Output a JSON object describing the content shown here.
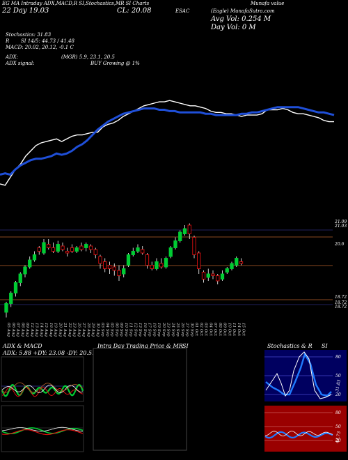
{
  "header": {
    "line1": "EG MA Intraday ADX,MACD,R SI,Stochastics,MR SI Charts",
    "line1b": "ESAC",
    "line1c": "Munafa value",
    "line2_left": "22 Day  19.03",
    "line2_mid": "CL: 20.08",
    "avg_vol": "Avg Vol: 0.254 M",
    "day_vol": "Day Vol: 0  M",
    "watermark": "(Eagle)  MunafaSutra.com",
    "stoch": "Stochastics: 31.83",
    "rsi": "SI 14/5: 44.73 / 41.48",
    "rsi_prefix": "R",
    "macd": "MACD: 20.02, 20.12, -0.1 C",
    "adx": "ADX:",
    "adx_values": "(MGR) 5.9, 23.1, 20.5",
    "adx_signal": "ADX  signal:",
    "signal": "BUY Growing @ 1%"
  },
  "colors": {
    "bg": "#000000",
    "ma_line": "#1f4fd8",
    "price_line": "#ffffff",
    "green": "#00cc33",
    "red": "#e01010",
    "level_line": "#b8602a",
    "grid_blue": "#2a2a7a",
    "stoch_bg": "#000060",
    "rsi_bg": "#9a0000"
  },
  "chart_data": [
    {
      "type": "line",
      "series": [
        {
          "values": [
            81,
            82,
            76,
            70,
            66,
            60,
            56,
            52,
            50,
            49,
            48,
            47,
            49,
            47,
            45,
            44,
            44,
            43,
            42,
            42,
            38,
            36,
            35,
            33,
            30,
            28,
            26,
            24,
            22,
            21,
            20,
            19,
            19,
            18,
            19,
            20,
            21,
            22,
            22,
            23,
            24,
            26,
            27,
            27,
            28,
            28,
            29,
            30,
            29,
            29,
            29,
            28,
            25,
            25,
            25,
            24,
            25,
            27,
            28,
            28,
            29,
            30,
            31,
            33,
            34,
            34
          ]
        },
        {
          "values": [
            74,
            73,
            74,
            70,
            67,
            65,
            63,
            62,
            62,
            61,
            60,
            58,
            59,
            58,
            56,
            53,
            51,
            48,
            44,
            40,
            37,
            34,
            32,
            30,
            28,
            27,
            26,
            25,
            24,
            24,
            24,
            25,
            25,
            26,
            26,
            27,
            27,
            27,
            27,
            27,
            28,
            28,
            29,
            29,
            29,
            29,
            29,
            28,
            28,
            27,
            27,
            26,
            25,
            24,
            23,
            23,
            23,
            23,
            23,
            24,
            25,
            26,
            27,
            27,
            28,
            29
          ]
        }
      ]
    },
    {
      "type": "bar",
      "kind": "candlestick",
      "price_labels": [
        "21.09",
        "21.03",
        "20.6",
        "18.72",
        "18.72",
        "18.72"
      ],
      "categories": [
        "05 Aug",
        "06 Aug",
        "07 Aug",
        "08 Aug",
        "09 Aug",
        "12 Aug",
        "13 Aug",
        "14 Aug",
        "15 Aug",
        "16 Aug",
        "19 Aug",
        "20 Aug",
        "21 Aug",
        "22 Aug",
        "23 Aug",
        "26 Aug",
        "27 Aug",
        "28 Aug",
        "29 Aug",
        "30 Aug",
        "03 Sep",
        "04 Sep",
        "05 Sep",
        "06 Sep",
        "09 Sep",
        "10 Sep",
        "11 Sep",
        "12 Sep",
        "13 Sep",
        "16 Sep",
        "17 Sep",
        "18 Sep",
        "19 Sep",
        "20 Sep",
        "23 Sep",
        "24 Sep",
        "25 Sep",
        "26 Sep",
        "27 Sep",
        "30 Sep",
        "01 Oct",
        "02 Oct",
        "03 Oct",
        "04 Oct",
        "07 Oct",
        "08 Oct",
        "09 Oct",
        "10 Oct",
        "11 Oct",
        "14 Oct",
        "15 Oct"
      ],
      "candles": [
        {
          "o": 18.7,
          "c": 18.95,
          "h": 19.0,
          "l": 18.55,
          "up": true
        },
        {
          "o": 18.95,
          "c": 19.25,
          "h": 19.3,
          "l": 18.85,
          "up": true
        },
        {
          "o": 19.25,
          "c": 19.55,
          "h": 19.6,
          "l": 19.15,
          "up": true
        },
        {
          "o": 19.55,
          "c": 19.8,
          "h": 19.85,
          "l": 19.45,
          "up": true
        },
        {
          "o": 19.8,
          "c": 20.0,
          "h": 20.05,
          "l": 19.7,
          "up": true
        },
        {
          "o": 20.0,
          "c": 20.2,
          "h": 20.3,
          "l": 19.95,
          "up": true
        },
        {
          "o": 20.2,
          "c": 20.35,
          "h": 20.45,
          "l": 20.15,
          "up": true
        },
        {
          "o": 20.55,
          "c": 20.45,
          "h": 20.6,
          "l": 20.35,
          "up": false
        },
        {
          "o": 20.4,
          "c": 20.7,
          "h": 20.8,
          "l": 20.35,
          "up": true
        },
        {
          "o": 20.65,
          "c": 20.55,
          "h": 20.8,
          "l": 20.5,
          "up": false
        },
        {
          "o": 20.55,
          "c": 20.45,
          "h": 20.7,
          "l": 20.4,
          "up": false
        },
        {
          "o": 20.45,
          "c": 20.65,
          "h": 20.75,
          "l": 20.4,
          "up": true
        },
        {
          "o": 20.6,
          "c": 20.5,
          "h": 20.7,
          "l": 20.45,
          "up": false
        },
        {
          "o": 20.45,
          "c": 20.4,
          "h": 20.55,
          "l": 20.3,
          "up": false
        },
        {
          "o": 20.55,
          "c": 20.45,
          "h": 20.65,
          "l": 20.4,
          "up": false
        },
        {
          "o": 20.45,
          "c": 20.55,
          "h": 20.6,
          "l": 20.4,
          "up": true
        },
        {
          "o": 20.6,
          "c": 20.5,
          "h": 20.7,
          "l": 20.45,
          "up": false
        },
        {
          "o": 20.55,
          "c": 20.65,
          "h": 20.7,
          "l": 20.45,
          "up": true
        },
        {
          "o": 20.6,
          "c": 20.5,
          "h": 20.65,
          "l": 20.4,
          "up": false
        },
        {
          "o": 20.5,
          "c": 20.35,
          "h": 20.55,
          "l": 20.25,
          "up": false
        },
        {
          "o": 20.3,
          "c": 20.1,
          "h": 20.35,
          "l": 19.95,
          "up": false
        },
        {
          "o": 20.15,
          "c": 19.95,
          "h": 20.25,
          "l": 19.85,
          "up": false
        },
        {
          "o": 20.05,
          "c": 19.95,
          "h": 20.15,
          "l": 19.8,
          "up": false
        },
        {
          "o": 20.0,
          "c": 19.9,
          "h": 20.1,
          "l": 19.75,
          "up": false
        },
        {
          "o": 19.9,
          "c": 19.75,
          "h": 20.05,
          "l": 19.6,
          "up": false
        },
        {
          "o": 19.8,
          "c": 19.95,
          "h": 20.05,
          "l": 19.7,
          "up": true
        },
        {
          "o": 20.05,
          "c": 20.35,
          "h": 20.4,
          "l": 20.0,
          "up": true
        },
        {
          "o": 20.35,
          "c": 20.45,
          "h": 20.55,
          "l": 20.3,
          "up": true
        },
        {
          "o": 20.45,
          "c": 20.55,
          "h": 20.65,
          "l": 20.4,
          "up": true
        },
        {
          "o": 20.5,
          "c": 20.4,
          "h": 20.6,
          "l": 20.35,
          "up": false
        },
        {
          "o": 20.35,
          "c": 20.05,
          "h": 20.4,
          "l": 19.95,
          "up": false
        },
        {
          "o": 20.05,
          "c": 19.95,
          "h": 20.15,
          "l": 19.9,
          "up": false
        },
        {
          "o": 19.95,
          "c": 20.15,
          "h": 20.25,
          "l": 19.9,
          "up": true
        },
        {
          "o": 20.1,
          "c": 20.0,
          "h": 20.25,
          "l": 19.95,
          "up": false
        },
        {
          "o": 20.0,
          "c": 20.25,
          "h": 20.3,
          "l": 19.95,
          "up": true
        },
        {
          "o": 20.3,
          "c": 20.55,
          "h": 20.6,
          "l": 20.25,
          "up": true
        },
        {
          "o": 20.55,
          "c": 20.75,
          "h": 20.85,
          "l": 20.5,
          "up": true
        },
        {
          "o": 20.75,
          "c": 21.0,
          "h": 21.05,
          "l": 20.7,
          "up": true
        },
        {
          "o": 20.95,
          "c": 21.1,
          "h": 21.2,
          "l": 20.9,
          "up": true
        },
        {
          "o": 21.2,
          "c": 20.95,
          "h": 21.25,
          "l": 20.8,
          "up": false
        },
        {
          "o": 20.85,
          "c": 20.35,
          "h": 20.9,
          "l": 20.25,
          "up": false
        },
        {
          "o": 20.4,
          "c": 19.95,
          "h": 20.45,
          "l": 19.8,
          "up": false
        },
        {
          "o": 19.85,
          "c": 19.65,
          "h": 19.9,
          "l": 19.55,
          "up": false
        },
        {
          "o": 19.7,
          "c": 19.8,
          "h": 19.95,
          "l": 19.6,
          "up": true
        },
        {
          "o": 19.8,
          "c": 19.75,
          "h": 19.9,
          "l": 19.65,
          "up": false
        },
        {
          "o": 19.75,
          "c": 19.6,
          "h": 19.8,
          "l": 19.5,
          "up": false
        },
        {
          "o": 19.65,
          "c": 19.8,
          "h": 19.9,
          "l": 19.6,
          "up": true
        },
        {
          "o": 19.85,
          "c": 19.95,
          "h": 20.0,
          "l": 19.8,
          "up": true
        },
        {
          "o": 19.95,
          "c": 20.1,
          "h": 20.15,
          "l": 19.9,
          "up": true
        },
        {
          "o": 20.05,
          "c": 20.25,
          "h": 20.3,
          "l": 20.0,
          "up": true
        },
        {
          "o": 20.15,
          "c": 20.1,
          "h": 20.25,
          "l": 20.05,
          "up": false
        }
      ]
    }
  ],
  "panels": {
    "adx_title": "ADX  & MACD",
    "adx_values": "ADX: 5.88  +DY: 23.08  -DY: 20.51",
    "intra_title": "Intra  Day Trading Price  & MR",
    "intra_title_b": "SI",
    "stoch_title": "Stochastics & R",
    "stoch_title_b": "SI",
    "stoch_ticks": [
      "80",
      "50",
      "20"
    ],
    "rsi_ticks": [
      "80",
      "50",
      "20"
    ],
    "stoch_readout": "31.83",
    "rsi_readout": "44.73"
  }
}
